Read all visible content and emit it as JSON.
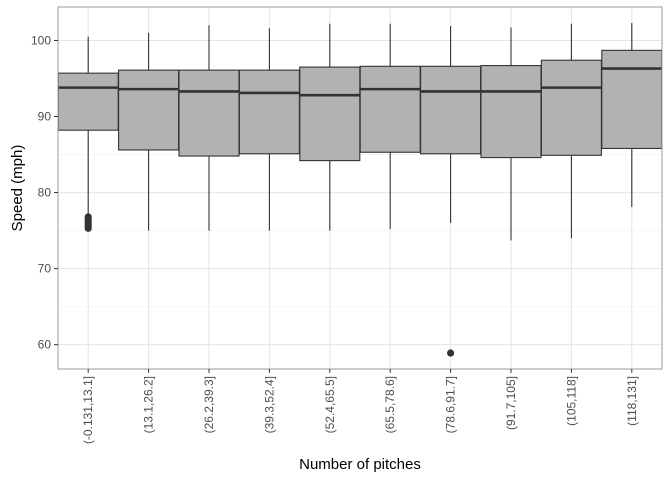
{
  "chart_data": {
    "type": "box",
    "title": "",
    "xlabel": "Number of pitches",
    "ylabel": "Speed (mph)",
    "ylim": [
      56.8,
      104.4
    ],
    "yticks": [
      60,
      70,
      80,
      90,
      100
    ],
    "grid": true,
    "box_fill": "#b2b2b2",
    "box_stroke": "#333333",
    "grid_major_color": "#e5e5e5",
    "grid_minor_color": "#f2f2f2",
    "panel_border_color": "#9a9a9a",
    "categories": [
      "(-0.131,13.1]",
      "(13.1,26.2]",
      "(26.2,39.3]",
      "(39.3,52.4]",
      "(52.4,65.5]",
      "(65.5,78.6]",
      "(78.6,91.7]",
      "(91.7,105]",
      "(105,118]",
      "(118,131]"
    ],
    "boxes": [
      {
        "whisker_low": 77.0,
        "q1": 88.2,
        "median": 93.8,
        "q3": 95.7,
        "whisker_high": 100.5,
        "outliers": [
          76.8,
          76.5,
          76.2,
          75.9,
          75.6,
          75.3
        ]
      },
      {
        "whisker_low": 75.0,
        "q1": 85.6,
        "median": 93.6,
        "q3": 96.1,
        "whisker_high": 101.0,
        "outliers": []
      },
      {
        "whisker_low": 75.0,
        "q1": 84.8,
        "median": 93.3,
        "q3": 96.1,
        "whisker_high": 102.0,
        "outliers": []
      },
      {
        "whisker_low": 75.0,
        "q1": 85.1,
        "median": 93.1,
        "q3": 96.1,
        "whisker_high": 101.6,
        "outliers": []
      },
      {
        "whisker_low": 75.0,
        "q1": 84.2,
        "median": 92.8,
        "q3": 96.5,
        "whisker_high": 102.2,
        "outliers": []
      },
      {
        "whisker_low": 75.2,
        "q1": 85.3,
        "median": 93.6,
        "q3": 96.6,
        "whisker_high": 102.2,
        "outliers": []
      },
      {
        "whisker_low": 76.0,
        "q1": 85.1,
        "median": 93.3,
        "q3": 96.6,
        "whisker_high": 101.9,
        "outliers": [
          58.9
        ]
      },
      {
        "whisker_low": 73.7,
        "q1": 84.6,
        "median": 93.3,
        "q3": 96.7,
        "whisker_high": 101.7,
        "outliers": []
      },
      {
        "whisker_low": 74.0,
        "q1": 84.9,
        "median": 93.8,
        "q3": 97.4,
        "whisker_high": 102.2,
        "outliers": []
      },
      {
        "whisker_low": 78.1,
        "q1": 85.8,
        "median": 96.3,
        "q3": 98.7,
        "whisker_high": 102.3,
        "outliers": []
      }
    ]
  }
}
